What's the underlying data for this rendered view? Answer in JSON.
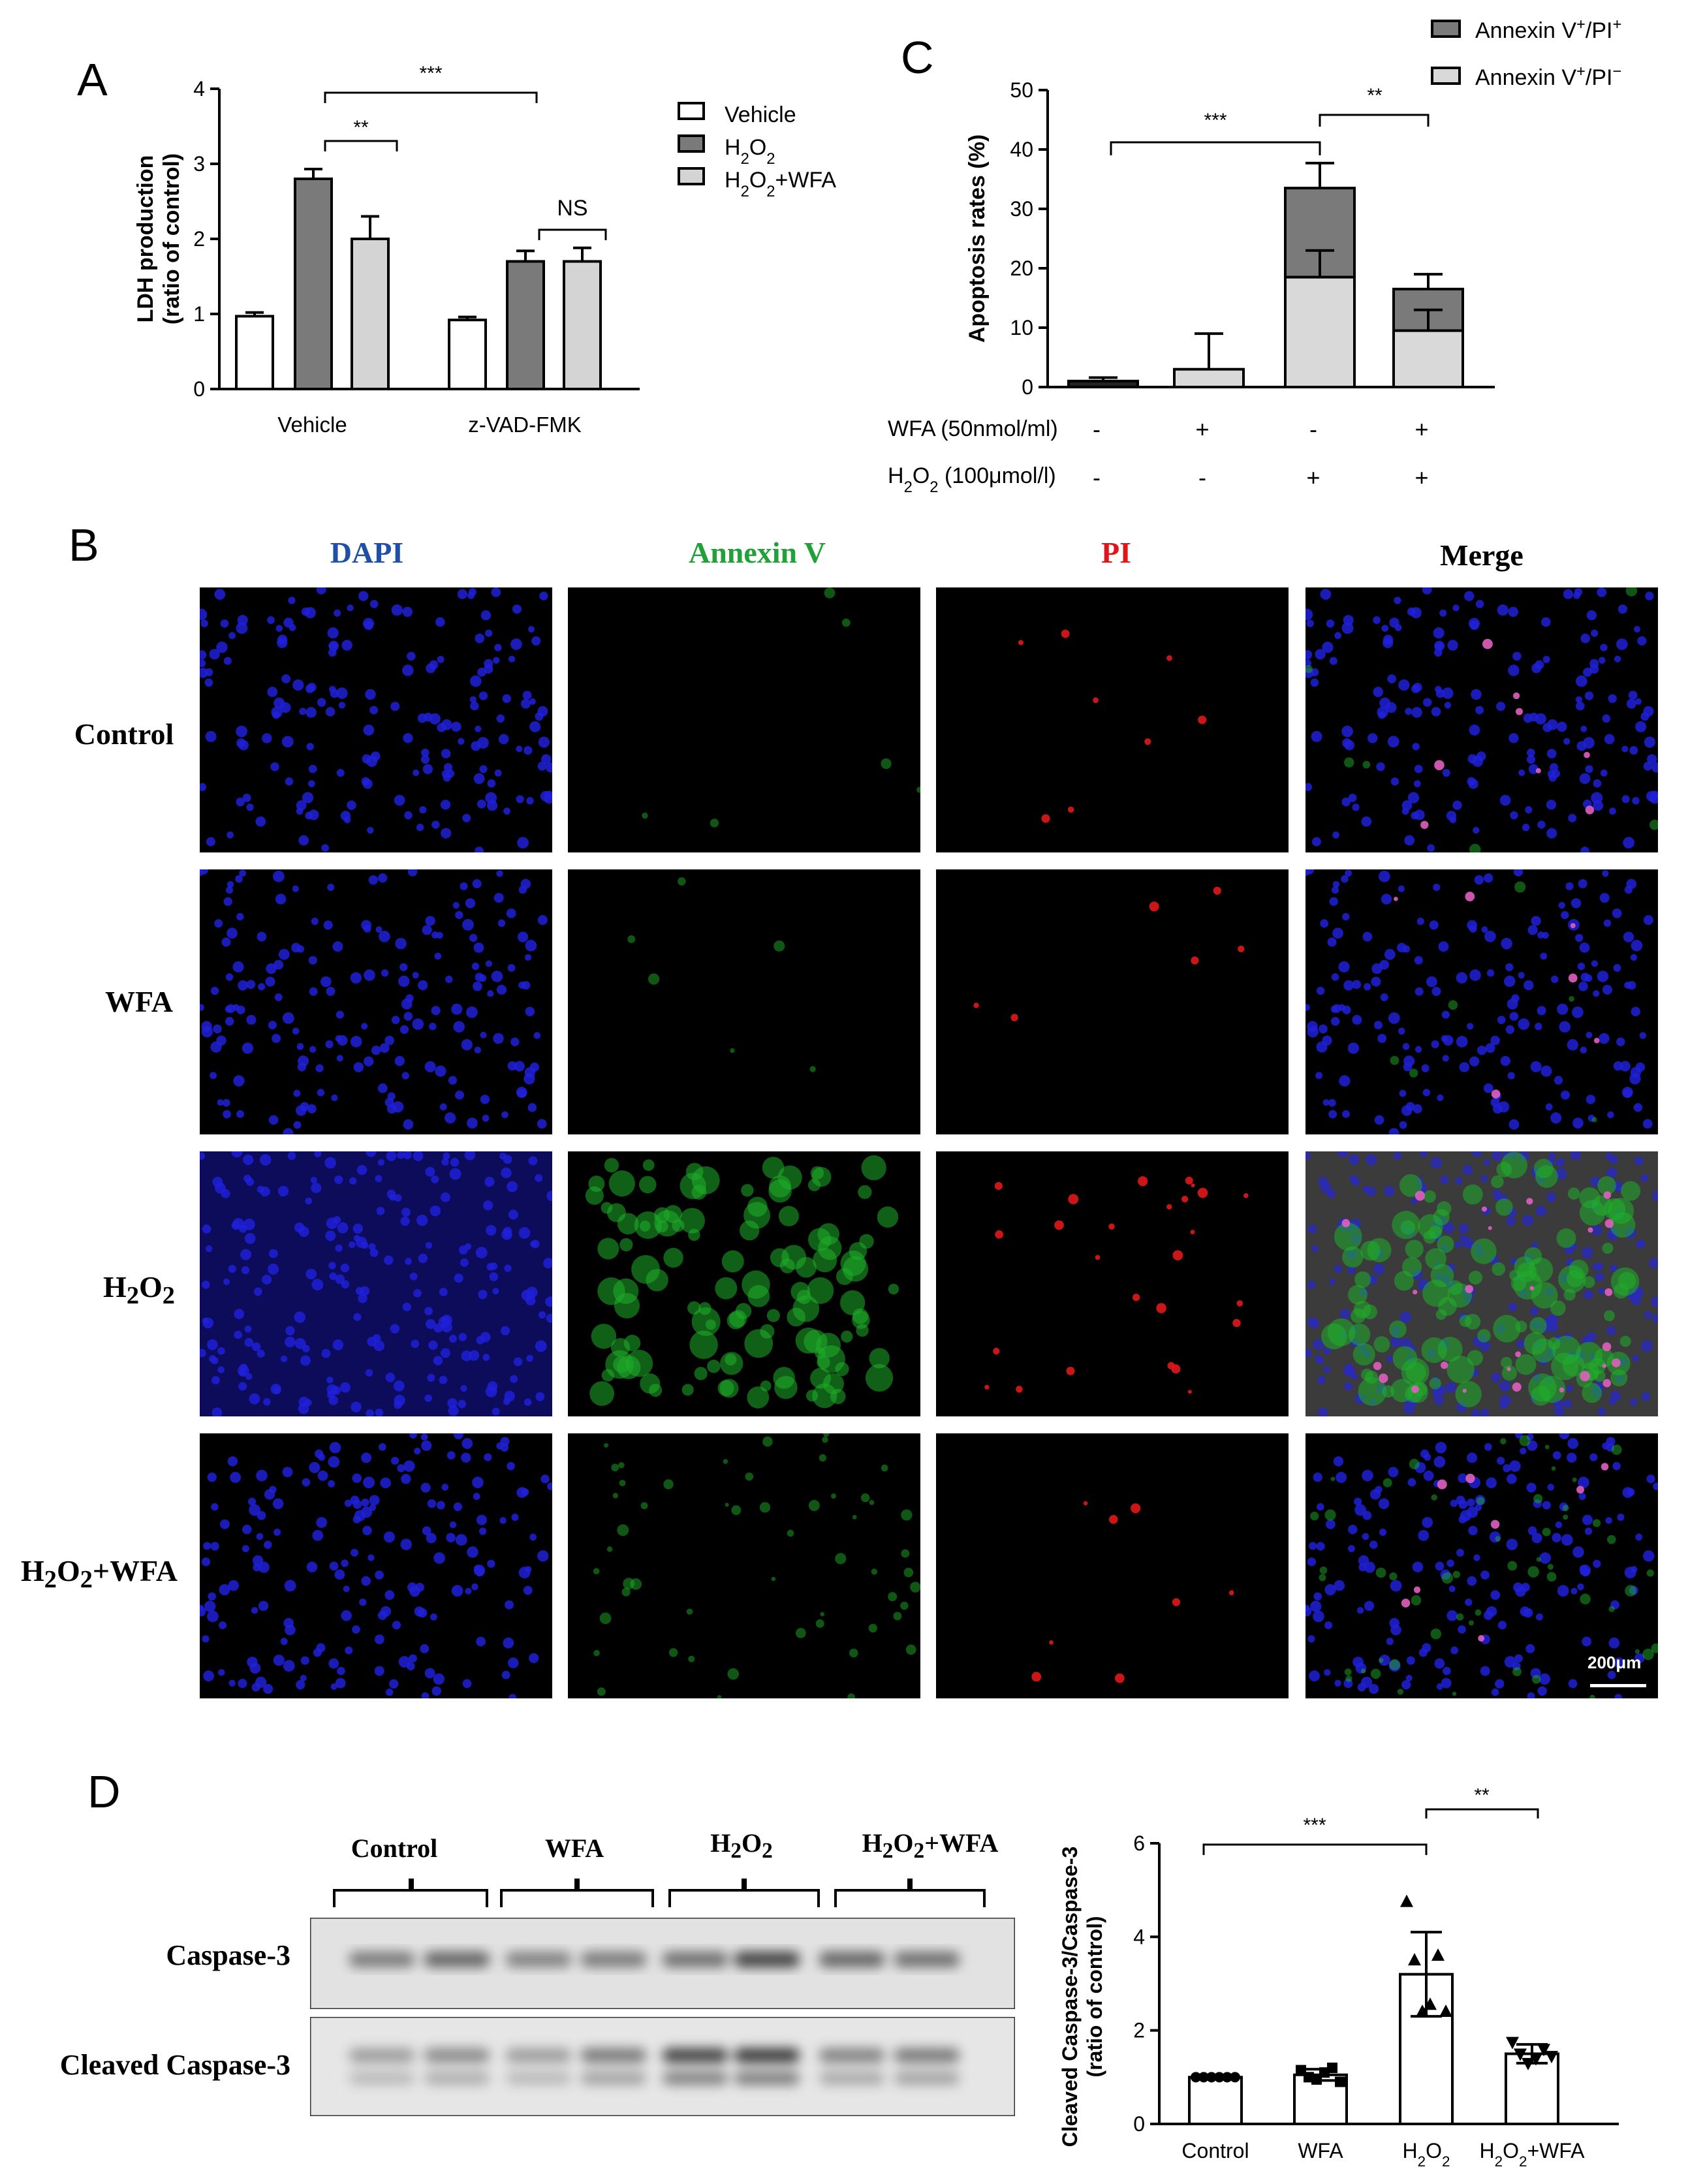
{
  "panels": {
    "a": "A",
    "b": "B",
    "c": "C",
    "d": "D"
  },
  "colors": {
    "vehicle": "#ffffff",
    "h2o2": "#7a7a7a",
    "h2o2_wfa": "#d4d4d4",
    "annexin_pi_pos": "#7a7a7a",
    "annexin_pi_neg": "#d9d9d9"
  },
  "chart_data": [
    {
      "id": "A",
      "type": "bar",
      "ylabel": "LDH production",
      "ylabel2": "(ratio of control)",
      "ylim": [
        0,
        4
      ],
      "yticks": [
        "0",
        "1",
        "2",
        "3",
        "4"
      ],
      "categories": [
        "Vehicle",
        "z-VAD-FMK"
      ],
      "series": [
        {
          "name": "Vehicle",
          "values": [
            0.97,
            0.92
          ],
          "errors": [
            0.05,
            0.04
          ]
        },
        {
          "name": "H2O2",
          "values": [
            2.8,
            1.7
          ],
          "errors": [
            0.13,
            0.14
          ]
        },
        {
          "name": "H2O2+WFA",
          "values": [
            2.0,
            1.7
          ],
          "errors": [
            0.3,
            0.18
          ]
        }
      ],
      "legend": [
        {
          "pre": "H",
          "sub1": "",
          "mid": "",
          "sub2": "",
          "post": "Vehicle"
        },
        {
          "pre": "H",
          "sub1": "2",
          "mid": "O",
          "sub2": "2",
          "post": ""
        },
        {
          "pre": "H",
          "sub1": "2",
          "mid": "O",
          "sub2": "2",
          "post": "+WFA"
        }
      ],
      "annotations": [
        "**",
        "***",
        "NS"
      ]
    },
    {
      "id": "C",
      "type": "bar",
      "stacked": true,
      "ylabel": "Apoptosis rates (%)",
      "ylim": [
        0,
        50
      ],
      "yticks": [
        "0",
        "10",
        "20",
        "30",
        "40",
        "50"
      ],
      "groups": 4,
      "series": [
        {
          "name_base": "Annexin V",
          "sup1": "+",
          "mid": "/PI",
          "sup2": "+",
          "values": [
            0.5,
            0,
            15,
            7
          ],
          "errors": [
            0.6,
            0,
            4.2,
            2.5
          ]
        },
        {
          "name_base": "Annexin V",
          "sup1": "+",
          "mid": "/PI",
          "sup2": "−",
          "values": [
            0.5,
            3,
            18.5,
            9.5
          ],
          "errors": [
            0,
            6,
            4.5,
            3.5
          ]
        }
      ],
      "rows": [
        {
          "label": "WFA (50nmol/ml)",
          "signs": [
            "-",
            "+",
            "-",
            "+"
          ]
        },
        {
          "label_pre": "H",
          "label_sub": "2",
          "label_mid": "O",
          "label_sub2": "2",
          "label_post": " (100μmol/l)",
          "signs": [
            "-",
            "-",
            "+",
            "+"
          ]
        }
      ],
      "annotations": [
        "***",
        "**"
      ]
    },
    {
      "id": "D",
      "type": "bar",
      "ylabel": "Cleaved Caspase-3/Caspase-3",
      "ylabel2": "(ratio of control)",
      "ylim": [
        0,
        6
      ],
      "yticks": [
        "0",
        "2",
        "4",
        "6"
      ],
      "categories": [
        "Control",
        "WFA",
        "H2O2",
        "H2O2+WFA"
      ],
      "values": [
        1.0,
        1.05,
        3.2,
        1.5
      ],
      "errors": [
        0.03,
        0.12,
        0.9,
        0.2
      ],
      "points": [
        [
          1.0,
          1.0,
          1.0,
          1.0,
          1.0,
          1.0
        ],
        [
          1.15,
          1.0,
          0.95,
          1.1,
          1.2,
          0.9
        ],
        [
          4.75,
          3.5,
          2.4,
          2.55,
          3.6,
          2.4
        ],
        [
          1.75,
          1.5,
          1.3,
          1.4,
          1.6,
          1.45
        ]
      ],
      "annotations": [
        "***",
        "**"
      ]
    }
  ],
  "panel_b": {
    "columns": [
      "DAPI",
      "Annexin V",
      "PI",
      "Merge"
    ],
    "column_colors": [
      "#1f4fa8",
      "#22a13a",
      "#e0141a",
      "#000000"
    ],
    "rows": [
      {
        "pre": "Control",
        "sub1": "",
        "mid": "",
        "sub2": "",
        "post": ""
      },
      {
        "pre": "WFA",
        "sub1": "",
        "mid": "",
        "sub2": "",
        "post": ""
      },
      {
        "pre": "H",
        "sub1": "2",
        "mid": "O",
        "sub2": "2",
        "post": ""
      },
      {
        "pre": "H",
        "sub1": "2",
        "mid": "O",
        "sub2": "2",
        "post": "+WFA"
      }
    ],
    "scale_bar": "200μm"
  },
  "panel_d_blot": {
    "lanes": [
      {
        "pre": "Control",
        "sub1": "",
        "mid": "",
        "sub2": "",
        "post": ""
      },
      {
        "pre": "WFA",
        "sub1": "",
        "mid": "",
        "sub2": "",
        "post": ""
      },
      {
        "pre": "H",
        "sub1": "2",
        "mid": "O",
        "sub2": "2",
        "post": ""
      },
      {
        "pre": "H",
        "sub1": "2",
        "mid": "O",
        "sub2": "2",
        "post": "+WFA"
      }
    ],
    "bands": [
      "Caspase-3",
      "Cleaved Caspase-3"
    ]
  }
}
